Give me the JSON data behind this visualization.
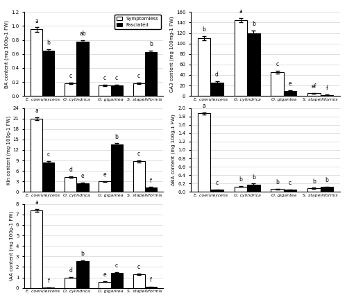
{
  "species": [
    "E. coerulescens",
    "O. cylindrica",
    "O. gigantea",
    "S. stapelliformis"
  ],
  "BA": {
    "symptomless": [
      0.95,
      0.18,
      0.15,
      0.18
    ],
    "fasciated": [
      0.65,
      0.78,
      0.15,
      0.63
    ],
    "se_s": [
      0.03,
      0.01,
      0.01,
      0.01
    ],
    "se_f": [
      0.02,
      0.02,
      0.01,
      0.02
    ],
    "labels_s": [
      "a",
      "c",
      "c",
      "c"
    ],
    "labels_f": [
      "b",
      "ab",
      "c",
      "b"
    ],
    "ylabel": "BA content (mg 100g-1 FW)",
    "ylim": [
      0,
      1.2
    ],
    "yticks": [
      0.0,
      0.2,
      0.4,
      0.6,
      0.8,
      1.0,
      1.2
    ]
  },
  "GA3": {
    "symptomless": [
      110,
      145,
      45,
      5
    ],
    "fasciated": [
      26,
      120,
      10,
      2
    ],
    "se_s": [
      4,
      4,
      3,
      0.5
    ],
    "se_f": [
      2,
      5,
      1,
      0.5
    ],
    "labels_s": [
      "b",
      "a",
      "c",
      "ef"
    ],
    "labels_f": [
      "d",
      "b",
      "e",
      "f"
    ],
    "ylabel": "GA3 content (mg 100mg-1 FW)",
    "ylim": [
      0,
      160
    ],
    "yticks": [
      0,
      20,
      40,
      60,
      80,
      100,
      120,
      140,
      160
    ]
  },
  "Kin": {
    "symptomless": [
      21,
      4.3,
      3.0,
      8.8
    ],
    "fasciated": [
      8.5,
      2.5,
      13.5,
      1.3
    ],
    "se_s": [
      0.4,
      0.2,
      0.15,
      0.3
    ],
    "se_f": [
      0.3,
      0.2,
      0.4,
      0.1
    ],
    "labels_s": [
      "a",
      "d",
      "e",
      "c"
    ],
    "labels_f": [
      "c",
      "e",
      "b",
      "f"
    ],
    "ylabel": "Kin content (mg 100g-1 FW)",
    "ylim": [
      0,
      24
    ],
    "yticks": [
      0,
      3,
      6,
      9,
      12,
      15,
      18,
      21,
      24
    ]
  },
  "ABA": {
    "symptomless": [
      1.87,
      0.13,
      0.07,
      0.09
    ],
    "fasciated": [
      0.05,
      0.18,
      0.05,
      0.12
    ],
    "se_s": [
      0.03,
      0.01,
      0.01,
      0.01
    ],
    "se_f": [
      0.01,
      0.02,
      0.01,
      0.01
    ],
    "labels_s": [
      "a",
      "b",
      "b",
      "b"
    ],
    "labels_f": [
      "c",
      "b",
      "c",
      "b"
    ],
    "ylabel": "ABA content (mg 100g-1 FW)",
    "ylim": [
      0,
      2.0
    ],
    "yticks": [
      0.0,
      0.2,
      0.4,
      0.6,
      0.8,
      1.0,
      1.2,
      1.4,
      1.6,
      1.8,
      2.0
    ]
  },
  "IAA": {
    "symptomless": [
      7.4,
      1.0,
      0.6,
      1.3
    ],
    "fasciated": [
      0.05,
      2.55,
      1.45,
      0.1
    ],
    "se_s": [
      0.15,
      0.05,
      0.05,
      0.05
    ],
    "se_f": [
      0.01,
      0.08,
      0.08,
      0.03
    ],
    "labels_s": [
      "a",
      "d",
      "e",
      "c"
    ],
    "labels_f": [
      "f",
      "b",
      "c",
      "f"
    ],
    "ylabel": "IAA content (mg 100g-1 FW)",
    "ylim": [
      0,
      8
    ],
    "yticks": [
      0,
      1,
      2,
      3,
      4,
      5,
      6,
      7,
      8
    ]
  },
  "bar_width": 0.35,
  "color_symptomless": "white",
  "color_fasciated": "black",
  "edgecolor": "black",
  "legend_labels": [
    "Symptomless",
    "Fasciated"
  ]
}
